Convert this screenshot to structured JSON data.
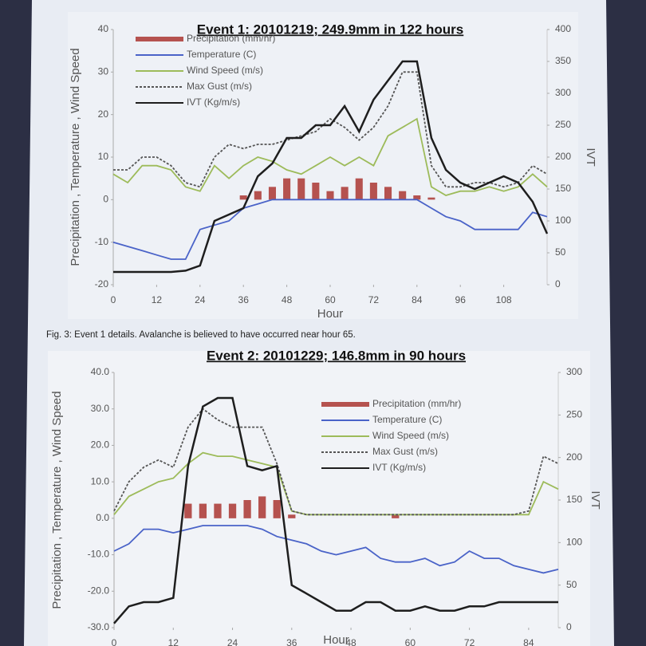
{
  "chart_data": [
    {
      "type": "combo",
      "title": "Event 1: 20101219; 249.9mm in 122 hours",
      "xlabel": "Hour",
      "ylabel": "Precipitation , Temperature , Wind Speed",
      "y2label": "IVT",
      "legend": "upper left",
      "x": [
        0,
        4,
        8,
        12,
        16,
        20,
        24,
        28,
        32,
        36,
        40,
        44,
        48,
        52,
        56,
        60,
        64,
        68,
        72,
        76,
        80,
        84,
        88,
        92,
        96,
        100,
        104,
        108,
        112,
        116,
        120
      ],
      "xlim": [
        0,
        120
      ],
      "xticks": [
        0,
        12,
        24,
        36,
        48,
        60,
        72,
        84,
        96,
        108
      ],
      "ylim": [
        -20,
        40
      ],
      "yticks": [
        -20,
        -10,
        0,
        10,
        20,
        30,
        40
      ],
      "y2lim": [
        0,
        400
      ],
      "y2ticks": [
        0,
        50,
        100,
        150,
        200,
        250,
        300,
        350,
        400
      ],
      "series": [
        {
          "name": "Precipitation (mm/hr)",
          "kind": "bar",
          "color": "#b5524f",
          "values": [
            0,
            0,
            0,
            0,
            0,
            0,
            0,
            0,
            0,
            1,
            2,
            3,
            5,
            5,
            4,
            2,
            3,
            5,
            4,
            3,
            2,
            1,
            0.5,
            0,
            0,
            0,
            0,
            0,
            0,
            0,
            0
          ]
        },
        {
          "name": "Temperature (C)",
          "kind": "line",
          "color": "#4a63c8",
          "values": [
            -10,
            -11,
            -12,
            -13,
            -14,
            -14,
            -7,
            -6,
            -5,
            -2,
            -1,
            0,
            0,
            0,
            0,
            0,
            0,
            0,
            0,
            0,
            0,
            0,
            -2,
            -4,
            -5,
            -7,
            -7,
            -7,
            -7,
            -3,
            -4
          ]
        },
        {
          "name": "Wind Speed (m/s)",
          "kind": "line",
          "color": "#9dbb5a",
          "values": [
            6,
            4,
            8,
            8,
            7,
            3,
            2,
            8,
            5,
            8,
            10,
            9,
            7,
            6,
            8,
            10,
            8,
            10,
            8,
            15,
            17,
            19,
            3,
            1,
            2,
            2,
            3,
            2,
            3,
            6,
            3
          ]
        },
        {
          "name": "Max Gust (m/s)",
          "kind": "line",
          "color": "#555555",
          "linestyle": "dashed",
          "values": [
            7,
            7,
            10,
            10,
            8,
            4,
            3,
            10,
            13,
            12,
            13,
            13,
            14,
            15,
            16,
            19,
            17,
            14,
            17,
            22,
            30,
            30,
            8,
            3,
            3,
            4,
            4,
            3,
            4,
            8,
            6
          ]
        },
        {
          "name": "IVT (Kg/m/s)",
          "kind": "line",
          "color": "#1e1e1e",
          "axis": "y2",
          "values": [
            20,
            20,
            20,
            20,
            20,
            22,
            30,
            100,
            110,
            120,
            170,
            190,
            230,
            230,
            250,
            250,
            280,
            240,
            290,
            320,
            350,
            350,
            230,
            180,
            160,
            150,
            160,
            170,
            160,
            130,
            80
          ]
        }
      ],
      "caption": "Fig. 3: Event 1 details. Avalanche is believed to have occurred near hour 65."
    },
    {
      "type": "combo",
      "title": "Event 2: 20101229; 146.8mm in 90 hours",
      "xlabel": "Hour",
      "ylabel": "Precipitation , Temperature , Wind Speed",
      "y2label": "IVT",
      "legend": "upper right",
      "x": [
        0,
        3,
        6,
        9,
        12,
        15,
        18,
        21,
        24,
        27,
        30,
        33,
        36,
        39,
        42,
        45,
        48,
        51,
        54,
        57,
        60,
        63,
        66,
        69,
        72,
        75,
        78,
        81,
        84,
        87,
        90
      ],
      "xlim": [
        0,
        90
      ],
      "xticks": [
        0,
        12,
        24,
        36,
        48,
        60,
        72,
        84
      ],
      "ylim": [
        -30,
        40
      ],
      "yticks": [
        {
          "value": -30,
          "label": "-30.0"
        },
        {
          "value": -20,
          "label": "-20.0"
        },
        {
          "value": -10,
          "label": "-10.0"
        },
        {
          "value": 0,
          "label": "0.0"
        },
        {
          "value": 10,
          "label": "10.0"
        },
        {
          "value": 20,
          "label": "20.0"
        },
        {
          "value": 30,
          "label": "30.0"
        },
        {
          "value": 40,
          "label": "40.0"
        }
      ],
      "y2lim": [
        0,
        300
      ],
      "y2ticks": [
        0,
        50,
        100,
        150,
        200,
        250,
        300
      ],
      "series": [
        {
          "name": "Precipitation (mm/hr)",
          "kind": "bar",
          "color": "#b5524f",
          "values": [
            0,
            0,
            0,
            0,
            0,
            4,
            4,
            4,
            4,
            5,
            6,
            5,
            1,
            0,
            0,
            0,
            0,
            0,
            0,
            1,
            0,
            0,
            0,
            0,
            0,
            0,
            0,
            0,
            0,
            0,
            0
          ]
        },
        {
          "name": "Temperature (C)",
          "kind": "line",
          "color": "#4a63c8",
          "values": [
            -9,
            -7,
            -3,
            -3,
            -4,
            -3,
            -2,
            -2,
            -2,
            -2,
            -3,
            -5,
            -6,
            -7,
            -9,
            -10,
            -9,
            -8,
            -11,
            -12,
            -12,
            -11,
            -13,
            -12,
            -9,
            -11,
            -11,
            -13,
            -14,
            -15,
            -14
          ]
        },
        {
          "name": "Wind Speed (m/s)",
          "kind": "line",
          "color": "#9dbb5a",
          "values": [
            1,
            6,
            8,
            10,
            11,
            15,
            18,
            17,
            17,
            16,
            15,
            14,
            2,
            1,
            1,
            1,
            1,
            1,
            1,
            1,
            1,
            1,
            1,
            1,
            1,
            1,
            1,
            1,
            1,
            10,
            8
          ]
        },
        {
          "name": "Max Gust (m/s)",
          "kind": "line",
          "color": "#555555",
          "linestyle": "dashed",
          "values": [
            2,
            10,
            14,
            16,
            14,
            25,
            30,
            27,
            25,
            25,
            25,
            15,
            2,
            1,
            1,
            1,
            1,
            1,
            1,
            1,
            1,
            1,
            1,
            1,
            1,
            1,
            1,
            1,
            2,
            17,
            15
          ]
        },
        {
          "name": "IVT (Kg/m/s)",
          "kind": "line",
          "color": "#1e1e1e",
          "axis": "y2",
          "values": [
            5,
            25,
            30,
            30,
            35,
            190,
            260,
            270,
            270,
            190,
            185,
            190,
            50,
            40,
            30,
            20,
            20,
            30,
            30,
            20,
            20,
            25,
            20,
            20,
            25,
            25,
            30,
            30,
            30,
            30,
            30
          ]
        }
      ]
    }
  ]
}
